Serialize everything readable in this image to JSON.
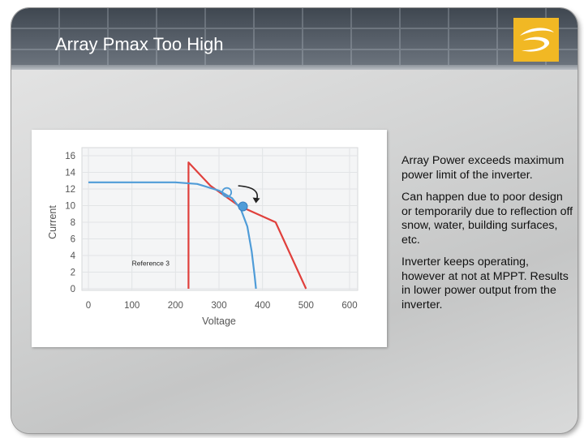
{
  "slide": {
    "title": "Array Pmax Too High",
    "bullets": [
      "Array Power exceeds maximum power limit of the inverter.",
      "Can happen due to poor design or temporarily due to reflection off snow, water, building surfaces, etc.",
      "Inverter keeps operating, however at not at MPPT. Results in lower power output from the inverter."
    ]
  },
  "logo": {
    "name": "company-logo-icon",
    "color": "#f1b824"
  },
  "chart_data": {
    "type": "line",
    "xlabel": "Voltage",
    "ylabel": "Current",
    "xlim": [
      0,
      600
    ],
    "ylim": [
      0,
      16
    ],
    "x_ticks": [
      "0",
      "100",
      "200",
      "300",
      "400",
      "500",
      "600"
    ],
    "y_ticks": [
      "0",
      "2",
      "4",
      "6",
      "8",
      "10",
      "12",
      "14",
      "16"
    ],
    "grid": true,
    "annotation": "Reference 3",
    "series": [
      {
        "color": "#e0403c",
        "points": [
          [
            230,
            0
          ],
          [
            230,
            15.2
          ],
          [
            280,
            12.4
          ],
          [
            345,
            10.0
          ],
          [
            430,
            8.0
          ],
          [
            500,
            0
          ]
        ]
      },
      {
        "color": "#4f9cd8",
        "points": [
          [
            0,
            12.8
          ],
          [
            200,
            12.8
          ],
          [
            250,
            12.6
          ],
          [
            300,
            11.8
          ],
          [
            330,
            10.9
          ],
          [
            350,
            9.6
          ],
          [
            365,
            7.5
          ],
          [
            375,
            4.5
          ],
          [
            382,
            1.5
          ],
          [
            385,
            0
          ]
        ]
      }
    ],
    "markers": [
      {
        "shape": "open-circle",
        "x": 318,
        "y": 11.6,
        "color": "#4f9cd8"
      },
      {
        "shape": "filled-circle",
        "x": 355,
        "y": 9.9,
        "color": "#4f9cd8"
      }
    ]
  }
}
